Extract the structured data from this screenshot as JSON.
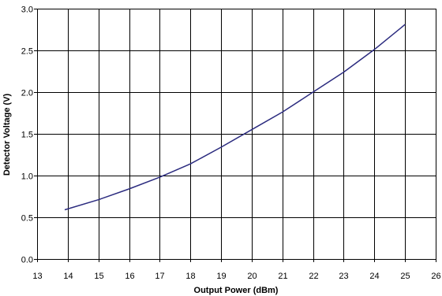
{
  "chart_data": {
    "type": "line",
    "title": "",
    "xlabel": "Output Power (dBm)",
    "ylabel": "Detector Voltage (V)",
    "xlim": [
      13,
      26
    ],
    "ylim": [
      0,
      3.0
    ],
    "xticks": [
      13,
      14,
      15,
      16,
      17,
      18,
      19,
      20,
      21,
      22,
      23,
      24,
      25,
      26
    ],
    "yticks": [
      0,
      0.5,
      1.0,
      1.5,
      2.0,
      2.5,
      3.0
    ],
    "ytick_labels": [
      "0.0",
      "0.5",
      "1.0",
      "1.5",
      "2.0",
      "2.5",
      "3.0"
    ],
    "grid": true,
    "legend": false,
    "series": [
      {
        "color": "#2b2b7f",
        "x": [
          13.9,
          15.0,
          16.0,
          17.0,
          18.0,
          19.0,
          20.0,
          21.0,
          22.0,
          23.0,
          24.0,
          25.0
        ],
        "y": [
          0.59,
          0.71,
          0.84,
          0.98,
          1.14,
          1.34,
          1.55,
          1.76,
          2.0,
          2.24,
          2.51,
          2.81
        ]
      }
    ]
  }
}
